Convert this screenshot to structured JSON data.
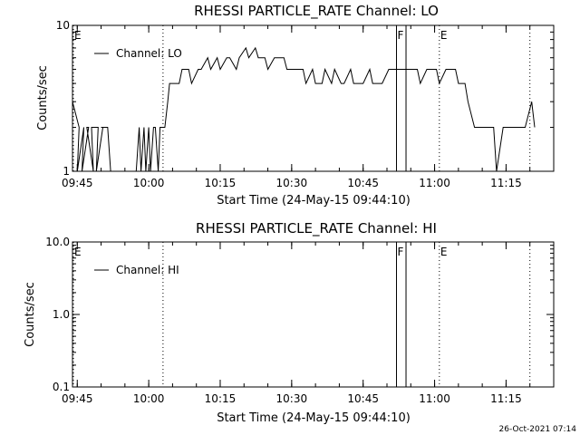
{
  "footer": {
    "timestamp": "26-Oct-2021 07:14"
  },
  "chart_data": [
    {
      "type": "line",
      "title": "RHESSI PARTICLE_RATE Channel: LO",
      "xlabel": "Start Time (24-May-15 09:44:10)",
      "ylabel": "Counts/sec",
      "yscale": "log",
      "ylim": [
        1,
        10
      ],
      "xlim": [
        "09:44",
        "11:25"
      ],
      "ytick_labels": [
        "1",
        "10"
      ],
      "xtick_labels": [
        "09:45",
        "10:00",
        "10:15",
        "10:30",
        "10:45",
        "11:00",
        "11:15"
      ],
      "legend": {
        "placement": "top-left",
        "entries": [
          "Channel: LO"
        ]
      },
      "markers": [
        {
          "label": "E",
          "time": "09:44",
          "style": "dotted"
        },
        {
          "label": "",
          "time": "10:03",
          "style": "dotted"
        },
        {
          "label": "F",
          "time": "10:52",
          "style": "solid"
        },
        {
          "label": "",
          "time": "10:54",
          "style": "solid"
        },
        {
          "label": "E",
          "time": "11:01",
          "style": "dotted"
        },
        {
          "label": "",
          "time": "11:20",
          "style": "dotted"
        }
      ],
      "series": [
        {
          "x": [
            "09:44",
            "09:45",
            "09:45",
            "09:46",
            "09:46",
            "09:47",
            "09:47",
            "09:48",
            "09:48",
            "09:49",
            "09:49",
            "09:50",
            "09:50",
            "09:51",
            "09:52",
            "09:53",
            "09:54",
            "09:55",
            "09:56",
            "09:57",
            "09:58",
            "09:58",
            "09:59",
            "09:59",
            "10:00",
            "10:00",
            "10:01",
            "10:01",
            "10:02",
            "10:02",
            "10:03",
            "10:03",
            "10:04",
            "10:04",
            "10:05",
            "10:06",
            "10:07",
            "10:08",
            "10:09",
            "10:10",
            "10:11",
            "10:12",
            "10:13",
            "10:14",
            "10:15",
            "10:16",
            "10:17",
            "10:18",
            "10:19",
            "10:20",
            "10:21",
            "10:22",
            "10:23",
            "10:24",
            "10:25",
            "10:26",
            "10:27",
            "10:28",
            "10:29",
            "10:30",
            "10:31",
            "10:32",
            "10:33",
            "10:34",
            "10:35",
            "10:36",
            "10:37",
            "10:38",
            "10:39",
            "10:40",
            "10:41",
            "10:42",
            "10:43",
            "10:44",
            "10:45",
            "10:46",
            "10:47",
            "10:48",
            "10:49",
            "10:50",
            "10:51",
            "10:52",
            "10:53",
            "10:54",
            "10:55",
            "10:56",
            "10:57",
            "10:58",
            "10:59",
            "11:00",
            "11:01",
            "11:02",
            "11:03",
            "11:04",
            "11:05",
            "11:06",
            "11:07",
            "11:08",
            "11:09",
            "11:10",
            "11:11",
            "11:12",
            "11:13",
            "11:14",
            "11:15",
            "11:16",
            "11:17",
            "11:18",
            "11:19",
            "11:20",
            "11:21"
          ],
          "y": [
            3,
            2,
            1,
            2,
            1,
            2,
            2,
            1,
            2,
            2,
            1,
            2,
            2,
            2,
            1,
            1,
            1,
            1,
            1,
            1,
            2,
            1,
            2,
            1,
            2,
            1,
            2,
            2,
            1,
            2,
            2,
            2,
            3,
            4,
            4,
            4,
            5,
            5,
            4,
            5,
            5,
            6,
            5,
            6,
            5,
            6,
            6,
            5,
            6,
            7,
            6,
            7,
            6,
            6,
            5,
            6,
            6,
            6,
            5,
            5,
            5,
            5,
            4,
            5,
            4,
            4,
            5,
            4,
            5,
            4,
            4,
            5,
            4,
            4,
            4,
            5,
            4,
            4,
            4,
            5,
            5,
            5,
            5,
            5,
            5,
            5,
            4,
            5,
            5,
            5,
            4,
            5,
            5,
            5,
            4,
            4,
            3,
            2,
            2,
            2,
            2,
            2,
            1,
            2,
            2,
            2,
            2,
            2,
            2,
            3,
            2
          ]
        }
      ]
    },
    {
      "type": "line",
      "title": "RHESSI PARTICLE_RATE Channel: HI",
      "xlabel": "Start Time (24-May-15 09:44:10)",
      "ylabel": "Counts/sec",
      "yscale": "log",
      "ylim": [
        0.1,
        10.0
      ],
      "xlim": [
        "09:44",
        "11:25"
      ],
      "ytick_labels": [
        "0.1",
        "1.0",
        "10.0"
      ],
      "xtick_labels": [
        "09:45",
        "10:00",
        "10:15",
        "10:30",
        "10:45",
        "11:00",
        "11:15"
      ],
      "legend": {
        "placement": "top-left",
        "entries": [
          "Channel: HI"
        ]
      },
      "markers": [
        {
          "label": "E",
          "time": "09:44",
          "style": "dotted"
        },
        {
          "label": "",
          "time": "10:03",
          "style": "dotted"
        },
        {
          "label": "F",
          "time": "10:52",
          "style": "solid"
        },
        {
          "label": "",
          "time": "10:54",
          "style": "solid"
        },
        {
          "label": "E",
          "time": "11:01",
          "style": "dotted"
        },
        {
          "label": "",
          "time": "11:20",
          "style": "dotted"
        }
      ],
      "series": [
        {
          "x": [],
          "y": []
        }
      ]
    }
  ]
}
